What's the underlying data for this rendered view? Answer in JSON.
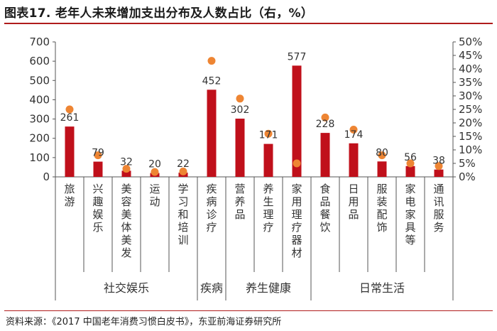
{
  "title": "图表17. 老年人未来增加支出分布及人数占比（右，%）",
  "source": "资料来源：《2017 中国老年消费习惯白皮书》，东亚前海证券研究所",
  "colors": {
    "bar": "#c0101b",
    "dot": "#ee8533",
    "rule": "#b01c1c"
  },
  "chart_data": {
    "type": "bar",
    "title": "老年人未来增加支出分布及人数占比（右，%）",
    "categories": [
      "旅游",
      "兴趣娱乐",
      "美容美体美发",
      "运动",
      "学习和培训",
      "疾病诊疗",
      "营养品",
      "养生理疗",
      "家用理疗器材",
      "食品餐饮",
      "日用品",
      "服装配饰",
      "家电家具等",
      "通讯服务"
    ],
    "groups": [
      {
        "label": "社交娱乐",
        "count": 5
      },
      {
        "label": "疾病",
        "count": 1
      },
      {
        "label": "养生健康",
        "count": 3
      },
      {
        "label": "日常生活",
        "count": 5
      }
    ],
    "series": [
      {
        "type": "bar",
        "axis": "left",
        "values": [
          261,
          79,
          32,
          20,
          22,
          452,
          302,
          171,
          577,
          228,
          174,
          80,
          56,
          38
        ]
      },
      {
        "type": "scatter",
        "axis": "right",
        "values": [
          25,
          8,
          3,
          1.8,
          2,
          43,
          29,
          16,
          5,
          22,
          17.5,
          8,
          5,
          4
        ]
      }
    ],
    "ylim": [
      0,
      700
    ],
    "yticks": [
      "0",
      "100",
      "200",
      "300",
      "400",
      "500",
      "600",
      "700"
    ],
    "y2lim": [
      0,
      50
    ],
    "y2ticks": [
      "0%",
      "5%",
      "10%",
      "15%",
      "20%",
      "25%",
      "30%",
      "35%",
      "40%",
      "45%",
      "50%"
    ],
    "legend": "none",
    "grid": false
  }
}
